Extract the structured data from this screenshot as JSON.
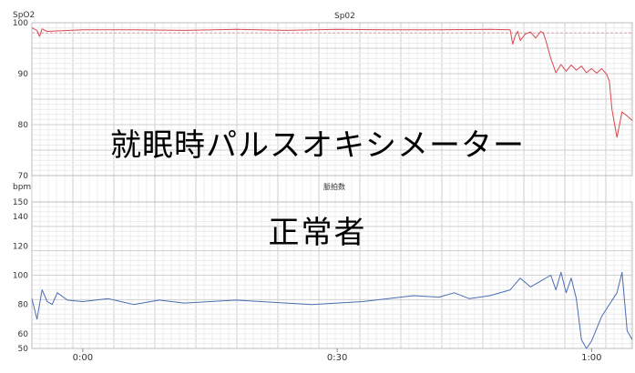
{
  "overlay": {
    "title": "就眠時パルスオキシメーター",
    "subtitle": "正常者"
  },
  "chart_data": [
    {
      "type": "line",
      "title": "Sp02",
      "unit_label": "SpO2",
      "color": "#d9484f",
      "ylim": [
        70,
        100
      ],
      "yticks": [
        70,
        80,
        90,
        100
      ],
      "dashed_reference": 98,
      "xlim": [
        -0.1,
        1.08
      ],
      "x": [
        -0.1,
        -0.09,
        -0.085,
        -0.08,
        -0.07,
        0.0,
        0.1,
        0.2,
        0.3,
        0.4,
        0.5,
        0.6,
        0.7,
        0.8,
        0.84,
        0.845,
        0.85,
        0.855,
        0.86,
        0.87,
        0.88,
        0.89,
        0.9,
        0.905,
        0.91,
        0.92,
        0.93,
        0.94,
        0.95,
        0.96,
        0.97,
        0.98,
        0.99,
        1.0,
        1.01,
        1.02,
        1.03,
        1.035,
        1.04,
        1.045,
        1.05,
        1.06,
        1.07,
        1.08
      ],
      "values": [
        99,
        98.5,
        97.3,
        98.8,
        98.3,
        98.6,
        98.6,
        98.5,
        98.7,
        98.5,
        98.7,
        98.6,
        98.6,
        98.7,
        98.6,
        95.8,
        97.5,
        98.3,
        96.5,
        97.8,
        98.2,
        97,
        98.3,
        98,
        96.5,
        93,
        90.2,
        91.8,
        90.5,
        91.7,
        90.7,
        91.5,
        90.2,
        91,
        90.1,
        91,
        89.8,
        88.5,
        83,
        80.2,
        77.5,
        82.5,
        81.7,
        80.8
      ]
    },
    {
      "type": "line",
      "title": "脈拍数",
      "unit_label": "bpm",
      "color": "#4a6db3",
      "ylim": [
        50,
        150
      ],
      "yticks": [
        50,
        60,
        80,
        100,
        120,
        140,
        150
      ],
      "xlim": [
        -0.1,
        1.08
      ],
      "xticks": [
        "0:00",
        "0:30",
        "1:00"
      ],
      "xtick_values": [
        0.0,
        0.5,
        1.0
      ],
      "x": [
        -0.1,
        -0.09,
        -0.08,
        -0.07,
        -0.06,
        -0.05,
        -0.03,
        0.0,
        0.05,
        0.1,
        0.15,
        0.2,
        0.25,
        0.3,
        0.35,
        0.4,
        0.45,
        0.5,
        0.55,
        0.6,
        0.65,
        0.7,
        0.73,
        0.76,
        0.8,
        0.84,
        0.86,
        0.88,
        0.9,
        0.92,
        0.93,
        0.94,
        0.95,
        0.96,
        0.97,
        0.98,
        0.99,
        1.0,
        1.02,
        1.05,
        1.06,
        1.07,
        1.08
      ],
      "values": [
        84,
        70,
        90,
        82,
        80,
        88,
        83,
        82,
        84,
        80,
        83,
        81,
        82,
        83,
        82,
        81,
        80,
        81,
        82,
        84,
        86,
        85,
        88,
        84,
        86,
        90,
        98,
        92,
        96,
        100,
        90,
        102,
        88,
        98,
        84,
        56,
        50,
        55,
        72,
        88,
        102,
        62,
        56
      ]
    }
  ]
}
